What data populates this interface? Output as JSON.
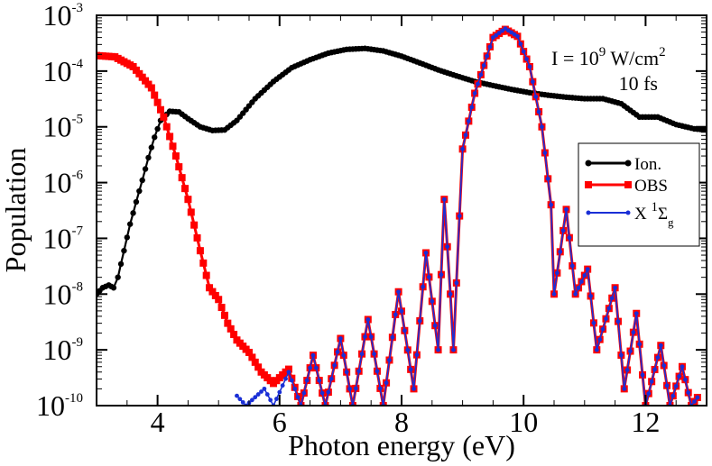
{
  "chart_data": {
    "type": "line",
    "xlabel": "Photon energy (eV)",
    "ylabel": "Population",
    "xlim": [
      3,
      13
    ],
    "ylim_log10": [
      -10,
      -3
    ],
    "log_y": true,
    "x_ticks": [
      4,
      6,
      8,
      10,
      12
    ],
    "x_tick_labels": [
      "4",
      "6",
      "8",
      "10",
      "12"
    ],
    "y_ticks_log10": [
      -10,
      -9,
      -8,
      -7,
      -6,
      -5,
      -4,
      -3
    ],
    "y_tick_labels": [
      {
        "base": "10",
        "exp": "-10"
      },
      {
        "base": "10",
        "exp": "-9"
      },
      {
        "base": "10",
        "exp": "-8"
      },
      {
        "base": "10",
        "exp": "-7"
      },
      {
        "base": "10",
        "exp": "-6"
      },
      {
        "base": "10",
        "exp": "-5"
      },
      {
        "base": "10",
        "exp": "-4"
      },
      {
        "base": "10",
        "exp": "-3"
      }
    ],
    "annotation": {
      "line1_prefix": "I = 10",
      "line1_exp": "9",
      "line1_unit": " W/cm",
      "line1_unit_exp": "2",
      "line2": "10 fs"
    },
    "legend_position": "right",
    "legend": [
      {
        "label": "Ion.",
        "color": "#000000",
        "marker": "circle"
      },
      {
        "label": "OBS",
        "color": "#ff0000",
        "marker": "square"
      },
      {
        "label_main": "X ",
        "label_sup": "1",
        "label_greek": "Σ",
        "label_sub": "g",
        "color": "#1a2fd6",
        "marker": "star"
      }
    ],
    "series": [
      {
        "name": "Ion.",
        "color": "#000000",
        "points": [
          [
            3.0,
            1e-08
          ],
          [
            3.1,
            1.3e-08
          ],
          [
            3.2,
            1.45e-08
          ],
          [
            3.28,
            1.3e-08
          ],
          [
            3.35,
            2e-08
          ],
          [
            3.45,
            6e-08
          ],
          [
            3.55,
            1.8e-07
          ],
          [
            3.65,
            4.5e-07
          ],
          [
            3.75,
            1.1e-06
          ],
          [
            3.85,
            2.8e-06
          ],
          [
            3.95,
            6.5e-06
          ],
          [
            4.05,
            1.3e-05
          ],
          [
            4.2,
            1.9e-05
          ],
          [
            4.35,
            1.85e-05
          ],
          [
            4.5,
            1.4e-05
          ],
          [
            4.7,
            1e-05
          ],
          [
            4.9,
            8.6e-06
          ],
          [
            5.1,
            8.8e-06
          ],
          [
            5.3,
            1.3e-05
          ],
          [
            5.6,
            3.2e-05
          ],
          [
            5.9,
            6.5e-05
          ],
          [
            6.2,
            0.000115
          ],
          [
            6.5,
            0.00016
          ],
          [
            6.8,
            0.00021
          ],
          [
            7.1,
            0.000245
          ],
          [
            7.4,
            0.000255
          ],
          [
            7.7,
            0.00023
          ],
          [
            8.0,
            0.000185
          ],
          [
            8.3,
            0.00014
          ],
          [
            8.6,
            0.000105
          ],
          [
            8.9,
            8.2e-05
          ],
          [
            9.2,
            6.5e-05
          ],
          [
            9.5,
            5.5e-05
          ],
          [
            9.8,
            4.7e-05
          ],
          [
            10.1,
            4.1e-05
          ],
          [
            10.4,
            3.7e-05
          ],
          [
            10.7,
            3.4e-05
          ],
          [
            11.0,
            3.2e-05
          ],
          [
            11.3,
            3.2e-05
          ],
          [
            11.6,
            2.6e-05
          ],
          [
            11.9,
            1.5e-05
          ],
          [
            12.2,
            1.5e-05
          ],
          [
            12.5,
            1.1e-05
          ],
          [
            12.8,
            9.2e-06
          ],
          [
            13.0,
            8.8e-06
          ]
        ]
      },
      {
        "name": "OBS",
        "color": "#ff0000",
        "points": [
          [
            3.0,
            0.00019
          ],
          [
            3.3,
            0.00018
          ],
          [
            3.6,
            0.00012
          ],
          [
            3.9,
            5e-05
          ],
          [
            4.1,
            1.5e-05
          ],
          [
            4.3,
            3e-06
          ],
          [
            4.5,
            5e-07
          ],
          [
            4.7,
            6e-08
          ],
          [
            4.85,
            1.3e-08
          ],
          [
            5.0,
            8e-09
          ],
          [
            5.15,
            3e-09
          ],
          [
            5.3,
            1.5e-09
          ],
          [
            5.5,
            9e-10
          ],
          [
            5.7,
            4e-10
          ],
          [
            5.9,
            2.5e-10
          ],
          [
            6.15,
            4.5e-10
          ],
          [
            6.35,
            1e-10
          ],
          [
            6.55,
            8e-10
          ],
          [
            6.75,
            1e-10
          ],
          [
            7.0,
            1.6e-09
          ],
          [
            7.2,
            1e-10
          ],
          [
            7.45,
            3.5e-09
          ],
          [
            7.7,
            1e-10
          ],
          [
            7.95,
            1.1e-08
          ],
          [
            8.2,
            2e-10
          ],
          [
            8.4,
            5.5e-08
          ],
          [
            8.6,
            1e-09
          ],
          [
            8.7,
            5e-07
          ],
          [
            8.8,
            1e-08
          ],
          [
            8.85,
            1e-09
          ],
          [
            9.0,
            4e-06
          ],
          [
            9.2,
            4e-05
          ],
          [
            9.5,
            0.0004
          ],
          [
            9.7,
            0.00056
          ],
          [
            9.9,
            0.00042
          ],
          [
            10.1,
            0.00012
          ],
          [
            10.3,
            1e-05
          ],
          [
            10.45,
            4e-07
          ],
          [
            10.5,
            1e-08
          ],
          [
            10.7,
            3.3e-07
          ],
          [
            10.85,
            1e-08
          ],
          [
            11.05,
            2.8e-08
          ],
          [
            11.2,
            1e-09
          ],
          [
            11.5,
            1.3e-08
          ],
          [
            11.65,
            2e-10
          ],
          [
            11.85,
            4.5e-09
          ],
          [
            12.0,
            1e-10
          ],
          [
            12.25,
            1.2e-09
          ],
          [
            12.4,
            1e-10
          ],
          [
            12.6,
            5e-10
          ],
          [
            12.75,
            1e-10
          ],
          [
            12.85,
            1.4e-10
          ]
        ]
      },
      {
        "name": "X 1Σg",
        "color": "#1a2fd6",
        "points": [
          [
            5.3,
            1.5e-10
          ],
          [
            5.45,
            1e-10
          ],
          [
            5.75,
            2e-10
          ],
          [
            5.9,
            1e-10
          ],
          [
            6.15,
            4e-10
          ],
          [
            6.35,
            1e-10
          ],
          [
            6.55,
            8e-10
          ],
          [
            6.75,
            1e-10
          ],
          [
            7.0,
            1.6e-09
          ],
          [
            7.2,
            1e-10
          ],
          [
            7.45,
            3.5e-09
          ],
          [
            7.7,
            1e-10
          ],
          [
            7.95,
            1.1e-08
          ],
          [
            8.2,
            2e-10
          ],
          [
            8.4,
            5.5e-08
          ],
          [
            8.6,
            1e-09
          ],
          [
            8.7,
            5e-07
          ],
          [
            8.8,
            1e-08
          ],
          [
            8.85,
            1e-09
          ],
          [
            9.0,
            4e-06
          ],
          [
            9.2,
            4e-05
          ],
          [
            9.5,
            0.0004
          ],
          [
            9.7,
            0.00058
          ],
          [
            9.9,
            0.00042
          ],
          [
            10.1,
            0.00012
          ],
          [
            10.3,
            1e-05
          ],
          [
            10.45,
            4e-07
          ],
          [
            10.5,
            1e-08
          ],
          [
            10.7,
            3.3e-07
          ],
          [
            10.85,
            1e-08
          ],
          [
            11.05,
            2.8e-08
          ],
          [
            11.2,
            1e-09
          ],
          [
            11.5,
            1.3e-08
          ],
          [
            11.65,
            2e-10
          ],
          [
            11.85,
            4.5e-09
          ],
          [
            12.0,
            1e-10
          ],
          [
            12.25,
            1.2e-09
          ],
          [
            12.4,
            1e-10
          ],
          [
            12.6,
            5e-10
          ],
          [
            12.75,
            1e-10
          ],
          [
            12.85,
            1.4e-10
          ]
        ]
      }
    ]
  }
}
